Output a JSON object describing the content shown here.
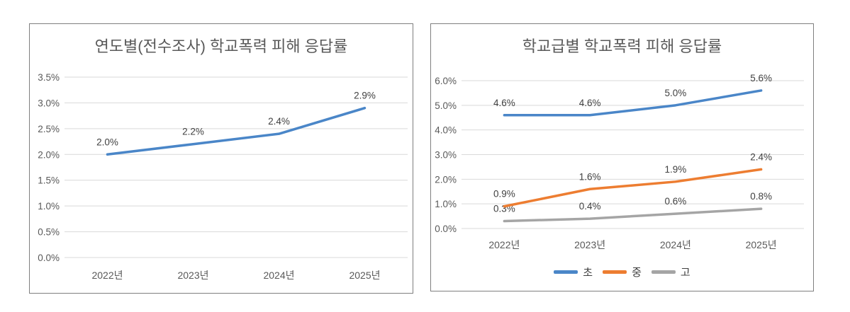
{
  "chart_data": [
    {
      "type": "line",
      "title": "연도별(전수조사) 학교폭력 피해 응답률",
      "categories": [
        "2022년",
        "2023년",
        "2024년",
        "2025년"
      ],
      "series": [
        {
          "name": "",
          "color": "#4a86c8",
          "values": [
            2.0,
            2.2,
            2.4,
            2.9
          ],
          "data_labels": [
            "2.0%",
            "2.2%",
            "2.4%",
            "2.9%"
          ]
        }
      ],
      "ylim": [
        0,
        3.5
      ],
      "ytick_step": 0.5,
      "ytick_labels": [
        "0.0%",
        "0.5%",
        "1.0%",
        "1.5%",
        "2.0%",
        "2.5%",
        "3.0%",
        "3.5%"
      ],
      "grid": true,
      "legend": false
    },
    {
      "type": "line",
      "title": "학교급별 학교폭력 피해 응답률",
      "categories": [
        "2022년",
        "2023년",
        "2024년",
        "2025년"
      ],
      "series": [
        {
          "name": "초",
          "color": "#4a86c8",
          "values": [
            4.6,
            4.6,
            5.0,
            5.6
          ],
          "data_labels": [
            "4.6%",
            "4.6%",
            "5.0%",
            "5.6%"
          ]
        },
        {
          "name": "중",
          "color": "#ed7d31",
          "values": [
            0.9,
            1.6,
            1.9,
            2.4
          ],
          "data_labels": [
            "0.9%",
            "1.6%",
            "1.9%",
            "2.4%"
          ]
        },
        {
          "name": "고",
          "color": "#a5a5a5",
          "values": [
            0.3,
            0.4,
            0.6,
            0.8
          ],
          "data_labels": [
            "0.3%",
            "0.4%",
            "0.6%",
            "0.8%"
          ]
        }
      ],
      "ylim": [
        0,
        6.0
      ],
      "ytick_step": 1.0,
      "ytick_labels": [
        "0.0%",
        "1.0%",
        "2.0%",
        "3.0%",
        "4.0%",
        "5.0%",
        "6.0%"
      ],
      "grid": true,
      "legend": {
        "position": "bottom",
        "entries": [
          "초",
          "중",
          "고"
        ]
      }
    }
  ]
}
